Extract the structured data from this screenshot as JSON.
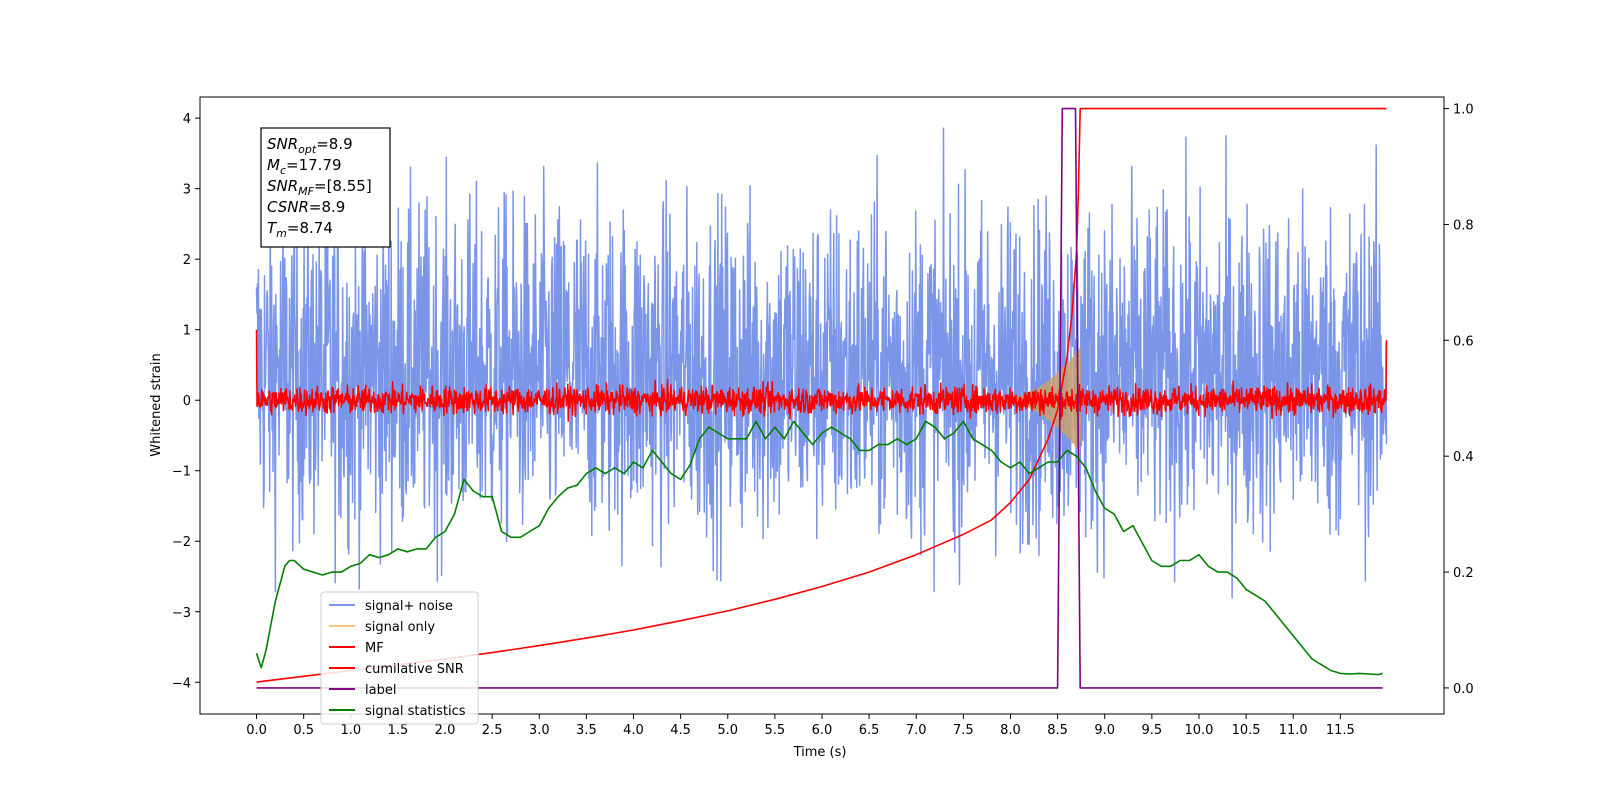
{
  "chart_data": {
    "type": "line",
    "xlabel": "Time (s)",
    "ylabel": "Whitened strain",
    "xlim": [
      -0.6,
      12.6
    ],
    "ylim": [
      -4.45,
      4.3
    ],
    "y2lim": [
      -0.045,
      1.02
    ],
    "x_ticks": [
      "0.0",
      "0.5",
      "1.0",
      "1.5",
      "2.0",
      "2.5",
      "3.0",
      "3.5",
      "4.0",
      "4.5",
      "5.0",
      "5.5",
      "6.0",
      "6.5",
      "7.0",
      "7.5",
      "8.0",
      "8.5",
      "9.0",
      "9.5",
      "10.0",
      "10.5",
      "11.0",
      "11.5"
    ],
    "y_ticks": [
      "4",
      "3",
      "2",
      "1",
      "0",
      "−1",
      "−2",
      "−3",
      "−4"
    ],
    "y2_ticks": [
      "0.0",
      "0.2",
      "0.4",
      "0.6",
      "0.8",
      "1.0"
    ],
    "annotation": {
      "lines": [
        {
          "base": "SNR",
          "sub": "opt",
          "rest": "=8.9"
        },
        {
          "base": "M",
          "sub": "c",
          "rest": "=17.79"
        },
        {
          "base": "SNR",
          "sub": "MF",
          "rest": "=[8.55]"
        },
        {
          "base": "CSNR",
          "sub": "",
          "rest": "=8.9"
        },
        {
          "base": "T",
          "sub": "m",
          "rest": "=8.74"
        }
      ]
    },
    "legend": {
      "placement": "lower-left",
      "entries": [
        {
          "label": "signal+ noise",
          "color": "#7b96e8"
        },
        {
          "label": "signal only",
          "color": "#f5c77e"
        },
        {
          "label": "MF",
          "color": "#ff0000"
        },
        {
          "label": "cumilative SNR",
          "color": "#ff0000"
        },
        {
          "label": "label",
          "color": "#800080"
        },
        {
          "label": "signal statistics",
          "color": "#008000"
        }
      ]
    },
    "series": [
      {
        "name": "signal+ noise",
        "axis": "left",
        "color": "#7b96e8",
        "style": "noise",
        "x_range": [
          0,
          11.99
        ],
        "center": 0.4,
        "spread": 1.2,
        "max": 3.9,
        "min": -4.15
      },
      {
        "name": "signal only",
        "axis": "left",
        "color": "#c8a070",
        "style": "chirp",
        "x_start": 7.8,
        "x_peak": 8.74,
        "peak_amplitude": 0.75
      },
      {
        "name": "MF",
        "axis": "left",
        "color": "#ff0000",
        "style": "noise",
        "x_range": [
          0,
          11.99
        ],
        "center": 0.0,
        "spread": 0.1,
        "start_value": 1.0,
        "end_value": 0.85
      },
      {
        "name": "cumilative SNR",
        "axis": "right",
        "color": "#ff0000",
        "x": [
          0.0,
          0.5,
          1.0,
          1.5,
          2.0,
          2.5,
          3.0,
          3.5,
          4.0,
          4.5,
          5.0,
          5.5,
          6.0,
          6.5,
          7.0,
          7.5,
          7.8,
          8.0,
          8.2,
          8.4,
          8.5,
          8.6,
          8.65,
          8.7,
          8.72,
          8.74,
          11.99
        ],
        "y": [
          0.01,
          0.02,
          0.03,
          0.04,
          0.05,
          0.061,
          0.073,
          0.086,
          0.1,
          0.116,
          0.133,
          0.153,
          0.175,
          0.2,
          0.23,
          0.265,
          0.29,
          0.32,
          0.36,
          0.43,
          0.48,
          0.57,
          0.64,
          0.75,
          0.85,
          1.0,
          1.0
        ]
      },
      {
        "name": "label",
        "axis": "right",
        "color": "#800080",
        "x": [
          0.0,
          8.5,
          8.55,
          8.69,
          8.74,
          11.95
        ],
        "y": [
          0.0,
          0.0,
          1.0,
          1.0,
          0.0,
          0.0
        ]
      },
      {
        "name": "signal statistics",
        "axis": "right",
        "color": "#008000",
        "x": [
          0.0,
          0.05,
          0.1,
          0.2,
          0.3,
          0.35,
          0.4,
          0.5,
          0.6,
          0.7,
          0.8,
          0.9,
          1.0,
          1.1,
          1.2,
          1.3,
          1.4,
          1.5,
          1.6,
          1.7,
          1.8,
          1.9,
          2.0,
          2.1,
          2.2,
          2.3,
          2.4,
          2.5,
          2.6,
          2.7,
          2.8,
          2.9,
          3.0,
          3.1,
          3.2,
          3.3,
          3.4,
          3.5,
          3.6,
          3.7,
          3.8,
          3.9,
          4.0,
          4.1,
          4.2,
          4.3,
          4.4,
          4.5,
          4.6,
          4.7,
          4.8,
          4.9,
          5.0,
          5.1,
          5.2,
          5.3,
          5.4,
          5.5,
          5.6,
          5.7,
          5.8,
          5.9,
          6.0,
          6.1,
          6.2,
          6.3,
          6.4,
          6.5,
          6.6,
          6.7,
          6.8,
          6.9,
          7.0,
          7.1,
          7.2,
          7.3,
          7.4,
          7.5,
          7.6,
          7.7,
          7.8,
          7.9,
          8.0,
          8.1,
          8.2,
          8.3,
          8.4,
          8.5,
          8.6,
          8.7,
          8.8,
          8.9,
          9.0,
          9.1,
          9.2,
          9.3,
          9.4,
          9.5,
          9.6,
          9.7,
          9.8,
          9.9,
          10.0,
          10.1,
          10.2,
          10.3,
          10.4,
          10.5,
          10.6,
          10.7,
          10.8,
          10.9,
          11.0,
          11.1,
          11.2,
          11.3,
          11.4,
          11.5,
          11.6,
          11.7,
          11.8,
          11.9,
          11.95
        ],
        "y": [
          0.06,
          0.035,
          0.065,
          0.15,
          0.21,
          0.22,
          0.22,
          0.205,
          0.2,
          0.195,
          0.2,
          0.2,
          0.21,
          0.215,
          0.23,
          0.225,
          0.23,
          0.24,
          0.235,
          0.24,
          0.24,
          0.26,
          0.27,
          0.3,
          0.36,
          0.34,
          0.33,
          0.33,
          0.27,
          0.26,
          0.26,
          0.27,
          0.28,
          0.31,
          0.33,
          0.345,
          0.35,
          0.37,
          0.38,
          0.37,
          0.38,
          0.37,
          0.39,
          0.38,
          0.41,
          0.39,
          0.37,
          0.36,
          0.385,
          0.43,
          0.45,
          0.44,
          0.43,
          0.43,
          0.43,
          0.46,
          0.43,
          0.45,
          0.43,
          0.46,
          0.44,
          0.42,
          0.44,
          0.45,
          0.44,
          0.43,
          0.41,
          0.41,
          0.42,
          0.42,
          0.43,
          0.42,
          0.43,
          0.46,
          0.45,
          0.43,
          0.44,
          0.46,
          0.43,
          0.42,
          0.41,
          0.39,
          0.38,
          0.39,
          0.37,
          0.38,
          0.39,
          0.39,
          0.41,
          0.4,
          0.38,
          0.34,
          0.31,
          0.3,
          0.27,
          0.28,
          0.25,
          0.22,
          0.21,
          0.21,
          0.22,
          0.22,
          0.23,
          0.21,
          0.2,
          0.2,
          0.19,
          0.17,
          0.16,
          0.15,
          0.13,
          0.11,
          0.09,
          0.07,
          0.05,
          0.04,
          0.03,
          0.025,
          0.024,
          0.025,
          0.024,
          0.023,
          0.025
        ]
      }
    ]
  }
}
